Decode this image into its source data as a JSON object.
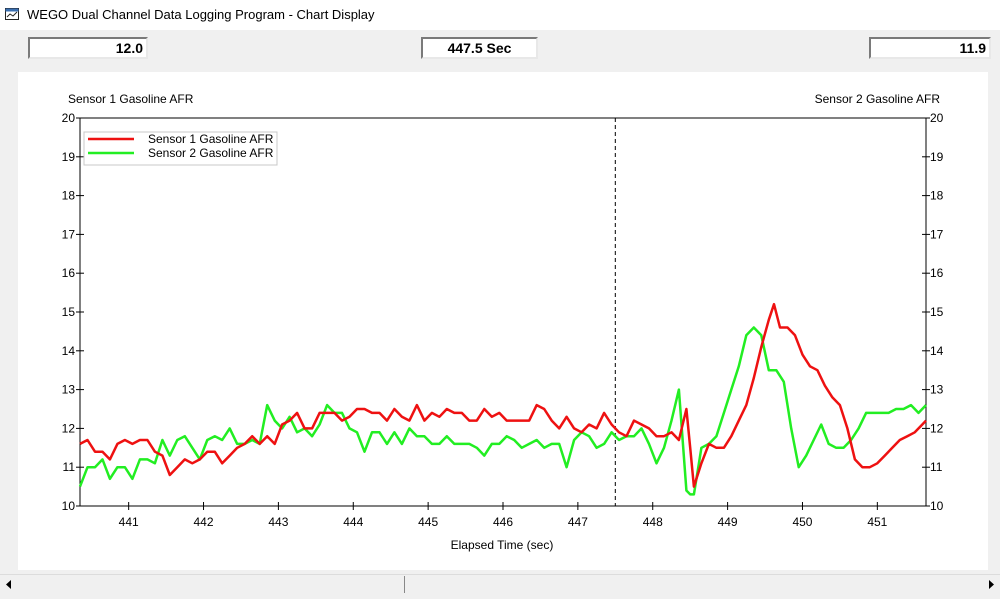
{
  "window": {
    "title": "WEGO Dual Channel Data Logging Program - Chart Display"
  },
  "readouts": {
    "left": "12.0",
    "center": "447.5 Sec",
    "right": "11.9"
  },
  "colors": {
    "sensor1": "#ee1111",
    "sensor2": "#22ee22",
    "axis": "#000000"
  },
  "chart_data": {
    "type": "line",
    "left_axis_label": "Sensor 1 Gasoline AFR",
    "right_axis_label": "Sensor 2 Gasoline AFR",
    "xlabel": "Elapsed Time (sec)",
    "xlim": [
      440.35,
      451.65
    ],
    "ylim": [
      10,
      20
    ],
    "xticks": [
      441,
      442,
      443,
      444,
      445,
      446,
      447,
      448,
      449,
      450,
      451
    ],
    "yticks": [
      10,
      11,
      12,
      13,
      14,
      15,
      16,
      17,
      18,
      19,
      20
    ],
    "cursor_x": 447.5,
    "legend_position": "top-left",
    "grid": false,
    "series": [
      {
        "name": "Sensor 1 Gasoline AFR",
        "color": "#ee1111",
        "x": [
          440.35,
          440.45,
          440.55,
          440.65,
          440.75,
          440.85,
          440.95,
          441.05,
          441.15,
          441.25,
          441.35,
          441.45,
          441.55,
          441.65,
          441.75,
          441.85,
          441.95,
          442.05,
          442.15,
          442.25,
          442.35,
          442.45,
          442.55,
          442.65,
          442.75,
          442.85,
          442.95,
          443.05,
          443.15,
          443.25,
          443.35,
          443.45,
          443.55,
          443.65,
          443.75,
          443.85,
          443.95,
          444.05,
          444.15,
          444.25,
          444.35,
          444.45,
          444.55,
          444.65,
          444.75,
          444.85,
          444.95,
          445.05,
          445.15,
          445.25,
          445.35,
          445.45,
          445.55,
          445.65,
          445.75,
          445.85,
          445.95,
          446.05,
          446.15,
          446.25,
          446.35,
          446.45,
          446.55,
          446.65,
          446.75,
          446.85,
          446.95,
          447.05,
          447.15,
          447.25,
          447.35,
          447.45,
          447.55,
          447.65,
          447.75,
          447.85,
          447.95,
          448.05,
          448.15,
          448.25,
          448.35,
          448.45,
          448.5,
          448.55,
          448.65,
          448.75,
          448.85,
          448.95,
          449.05,
          449.15,
          449.25,
          449.35,
          449.45,
          449.55,
          449.62,
          449.7,
          449.8,
          449.9,
          450.0,
          450.1,
          450.2,
          450.3,
          450.4,
          450.5,
          450.6,
          450.7,
          450.8,
          450.9,
          451.0,
          451.1,
          451.2,
          451.3,
          451.4,
          451.5,
          451.6,
          451.65
        ],
        "y": [
          11.6,
          11.7,
          11.4,
          11.4,
          11.2,
          11.6,
          11.7,
          11.6,
          11.7,
          11.7,
          11.4,
          11.3,
          10.8,
          11.0,
          11.2,
          11.1,
          11.2,
          11.4,
          11.4,
          11.1,
          11.3,
          11.5,
          11.6,
          11.8,
          11.6,
          11.8,
          11.6,
          12.1,
          12.2,
          12.4,
          12.0,
          12.0,
          12.4,
          12.4,
          12.4,
          12.2,
          12.3,
          12.5,
          12.5,
          12.4,
          12.4,
          12.2,
          12.5,
          12.3,
          12.2,
          12.6,
          12.2,
          12.4,
          12.3,
          12.5,
          12.4,
          12.4,
          12.2,
          12.2,
          12.5,
          12.3,
          12.4,
          12.2,
          12.2,
          12.2,
          12.2,
          12.6,
          12.5,
          12.2,
          12.0,
          12.3,
          12.0,
          11.9,
          12.1,
          12.0,
          12.4,
          12.1,
          11.9,
          11.8,
          12.2,
          12.1,
          12.0,
          11.8,
          11.8,
          11.9,
          11.7,
          12.5,
          11.5,
          10.5,
          11.1,
          11.6,
          11.5,
          11.5,
          11.8,
          12.2,
          12.6,
          13.3,
          14.1,
          14.8,
          15.2,
          14.6,
          14.6,
          14.4,
          13.9,
          13.6,
          13.5,
          13.1,
          12.8,
          12.6,
          12.0,
          11.2,
          11.0,
          11.0,
          11.1,
          11.3,
          11.5,
          11.7,
          11.8,
          11.9,
          12.1,
          12.2
        ]
      },
      {
        "name": "Sensor 2 Gasoline AFR",
        "color": "#22ee22",
        "x": [
          440.35,
          440.45,
          440.55,
          440.65,
          440.75,
          440.85,
          440.95,
          441.05,
          441.15,
          441.25,
          441.35,
          441.45,
          441.55,
          441.65,
          441.75,
          441.85,
          441.95,
          442.05,
          442.15,
          442.25,
          442.35,
          442.45,
          442.55,
          442.65,
          442.75,
          442.85,
          442.95,
          443.05,
          443.15,
          443.25,
          443.35,
          443.45,
          443.55,
          443.65,
          443.75,
          443.85,
          443.95,
          444.05,
          444.15,
          444.25,
          444.35,
          444.45,
          444.55,
          444.65,
          444.75,
          444.85,
          444.95,
          445.05,
          445.15,
          445.25,
          445.35,
          445.45,
          445.55,
          445.65,
          445.75,
          445.85,
          445.95,
          446.05,
          446.15,
          446.25,
          446.35,
          446.45,
          446.55,
          446.65,
          446.75,
          446.85,
          446.95,
          447.05,
          447.15,
          447.25,
          447.35,
          447.45,
          447.55,
          447.65,
          447.75,
          447.85,
          447.95,
          448.05,
          448.15,
          448.25,
          448.35,
          448.45,
          448.5,
          448.55,
          448.65,
          448.75,
          448.85,
          448.95,
          449.05,
          449.15,
          449.25,
          449.35,
          449.45,
          449.55,
          449.65,
          449.75,
          449.85,
          449.95,
          450.05,
          450.15,
          450.25,
          450.35,
          450.45,
          450.55,
          450.65,
          450.75,
          450.85,
          450.95,
          451.05,
          451.15,
          451.25,
          451.35,
          451.45,
          451.55,
          451.65
        ],
        "y": [
          10.5,
          11.0,
          11.0,
          11.2,
          10.7,
          11.0,
          11.0,
          10.7,
          11.2,
          11.2,
          11.1,
          11.7,
          11.3,
          11.7,
          11.8,
          11.5,
          11.2,
          11.7,
          11.8,
          11.7,
          12.0,
          11.6,
          11.6,
          11.7,
          11.6,
          12.6,
          12.2,
          12.0,
          12.3,
          11.9,
          12.0,
          11.8,
          12.1,
          12.6,
          12.4,
          12.4,
          12.0,
          11.9,
          11.4,
          11.9,
          11.9,
          11.6,
          11.9,
          11.6,
          12.0,
          11.8,
          11.8,
          11.6,
          11.6,
          11.8,
          11.6,
          11.6,
          11.6,
          11.5,
          11.3,
          11.6,
          11.6,
          11.8,
          11.7,
          11.5,
          11.6,
          11.7,
          11.5,
          11.6,
          11.6,
          11.0,
          11.7,
          11.9,
          11.8,
          11.5,
          11.6,
          11.9,
          11.7,
          11.8,
          11.8,
          12.0,
          11.6,
          11.1,
          11.5,
          12.2,
          13.0,
          10.4,
          10.3,
          10.3,
          11.5,
          11.6,
          11.8,
          12.4,
          13.0,
          13.6,
          14.4,
          14.6,
          14.4,
          13.5,
          13.5,
          13.2,
          12.0,
          11.0,
          11.3,
          11.7,
          12.1,
          11.6,
          11.5,
          11.5,
          11.7,
          12.0,
          12.4,
          12.4,
          12.4,
          12.4,
          12.5,
          12.5,
          12.6,
          12.4,
          12.6
        ]
      }
    ]
  },
  "scrollbar": {
    "left_arrow": "◄",
    "right_arrow": "►"
  }
}
